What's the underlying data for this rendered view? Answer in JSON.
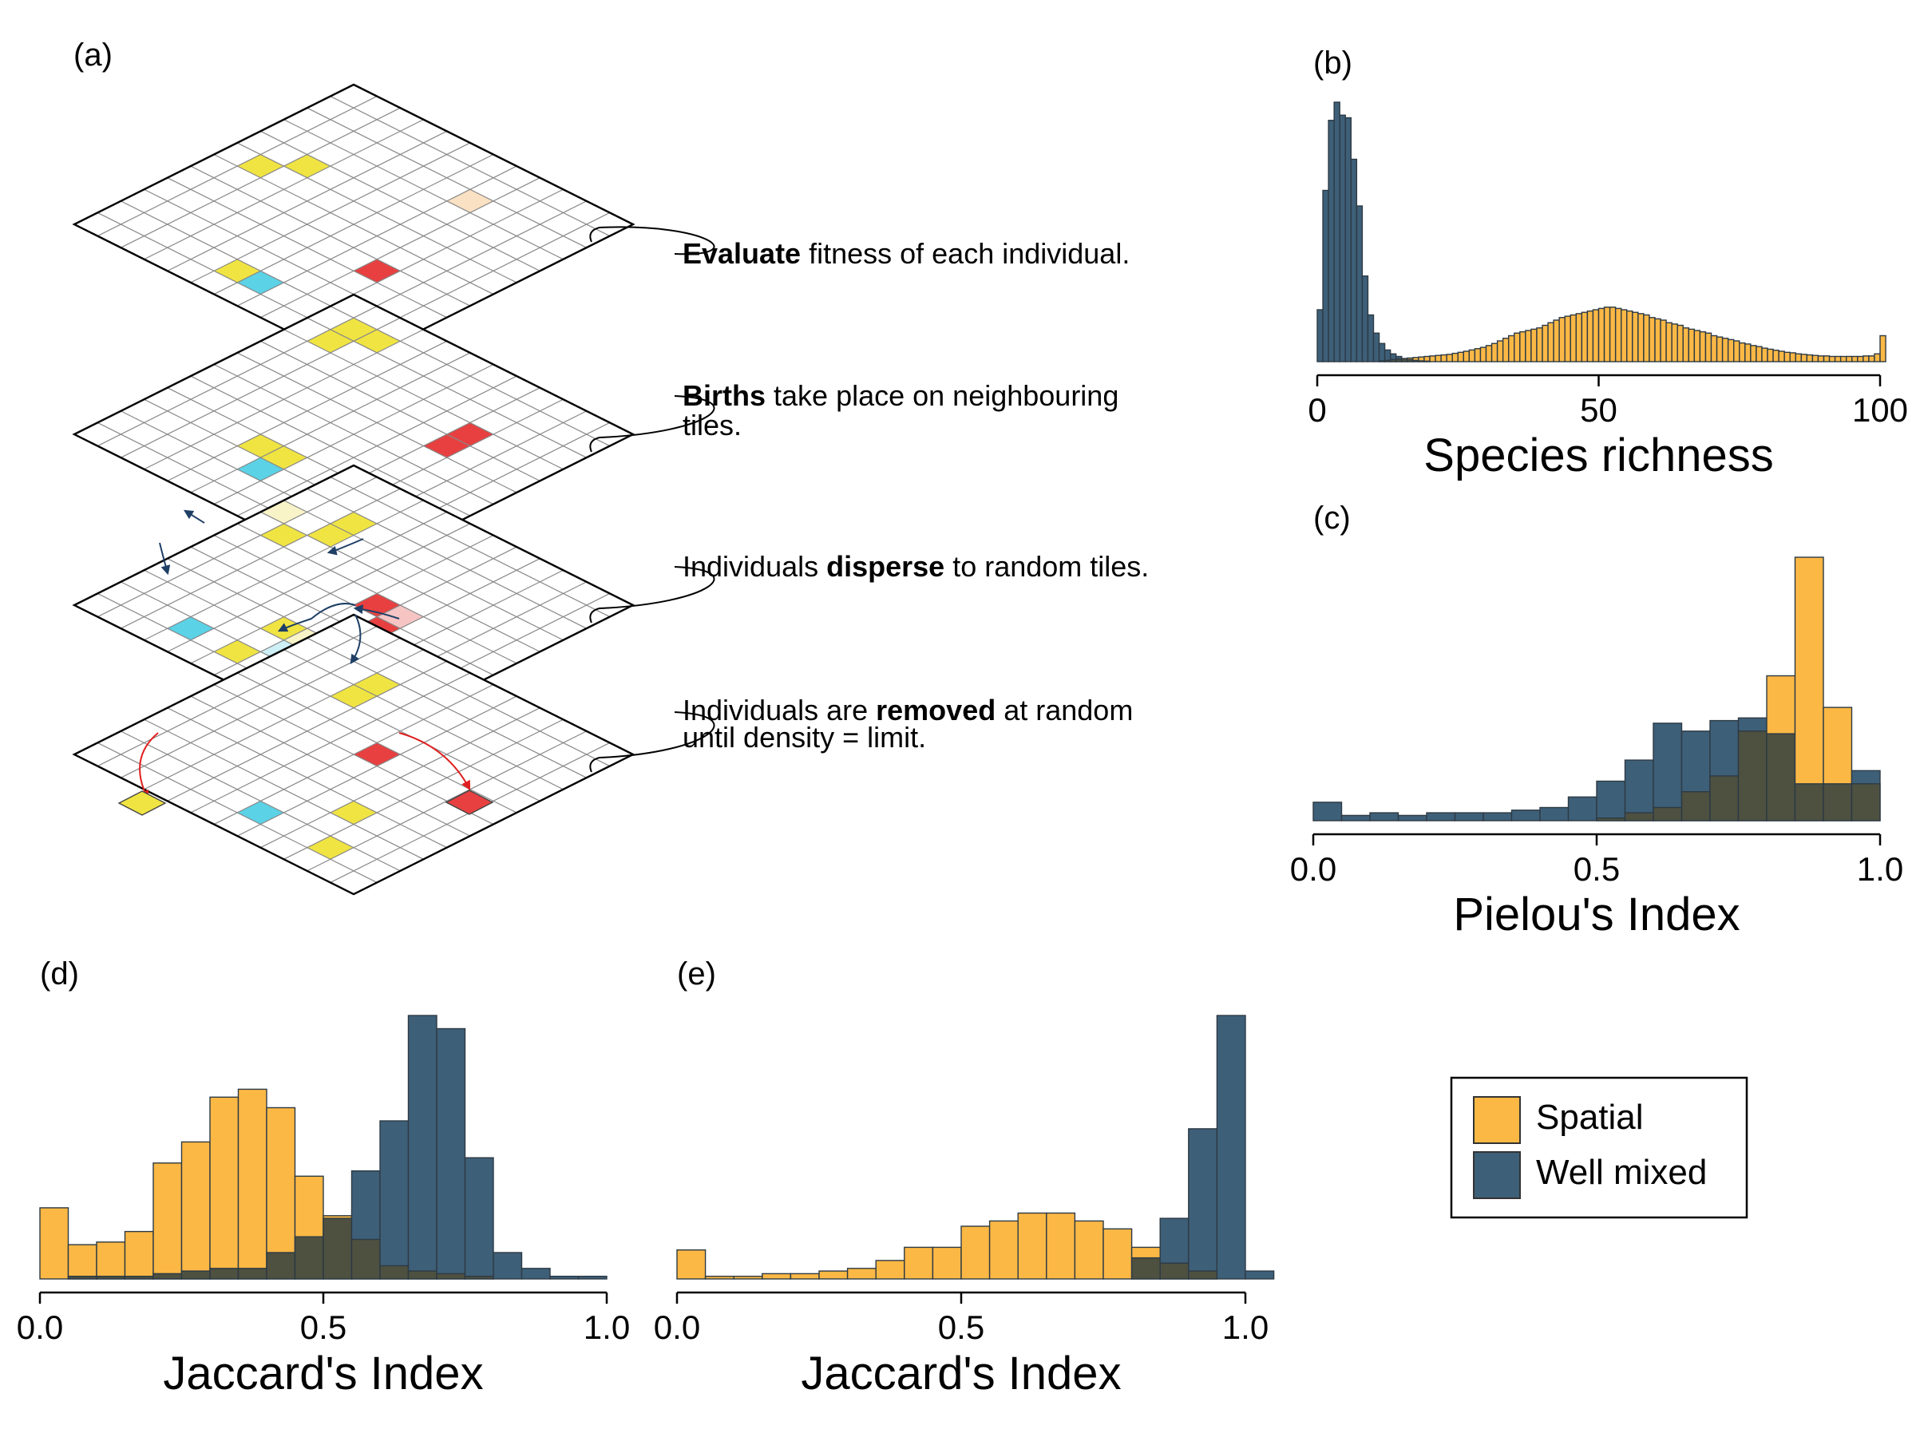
{
  "panels": {
    "a": {
      "label": "(a)",
      "steps": [
        {
          "pre": "",
          "bold": "Evaluate",
          "post": " fitness of each individual.",
          "line2": ""
        },
        {
          "pre": "",
          "bold": "Births",
          "post": " take place on neighbouring",
          "line2": "tiles."
        },
        {
          "pre": "Individuals ",
          "bold": "disperse",
          "post": " to random tiles.",
          "line2": ""
        },
        {
          "pre": "Individuals are ",
          "bold": "removed",
          "post": " at random",
          "line2": "until density = limit."
        }
      ],
      "tile_colors": {
        "yellow": "#f0e442",
        "red": "#e84040",
        "cyan": "#5bd2e6",
        "peach": "#fae1c3",
        "pale_yellow": "#f8f4c8",
        "pale_red": "#f7c4c4",
        "pale_cyan": "#cdf0f6"
      }
    }
  },
  "legend": {
    "entries": [
      {
        "label": "Spatial",
        "color": "#fbb845"
      },
      {
        "label": "Well mixed",
        "color": "#3e5f78"
      }
    ],
    "overlap_color": "#4e5140"
  },
  "chart_data": [
    {
      "id": "b",
      "panel_label": "(b)",
      "type": "bar",
      "subtype": "overlapping histogram",
      "xlabel": "Species richness",
      "xlim": [
        0,
        100
      ],
      "ylim": [
        0,
        1000
      ],
      "xticks": [
        {
          "v": 0,
          "label": "0"
        },
        {
          "v": 50,
          "label": "50"
        },
        {
          "v": 100,
          "label": "100"
        }
      ],
      "bin_start": 0,
      "bin_width": 1,
      "series": [
        {
          "name": "Well mixed",
          "color": "#3e5f78",
          "values": [
            200,
            660,
            930,
            1000,
            950,
            940,
            780,
            600,
            330,
            180,
            110,
            70,
            45,
            30,
            20,
            12,
            8,
            5,
            3,
            2
          ]
        },
        {
          "name": "Spatial",
          "color": "#fbb845",
          "values": [
            0,
            0,
            0,
            0,
            0,
            0,
            0,
            0,
            0,
            0,
            0,
            3,
            5,
            8,
            10,
            12,
            14,
            16,
            18,
            20,
            22,
            24,
            26,
            28,
            32,
            36,
            40,
            45,
            50,
            55,
            62,
            70,
            80,
            90,
            100,
            110,
            115,
            120,
            125,
            130,
            140,
            150,
            160,
            170,
            175,
            180,
            185,
            190,
            195,
            200,
            205,
            210,
            210,
            205,
            200,
            195,
            190,
            185,
            180,
            170,
            165,
            160,
            150,
            145,
            140,
            130,
            125,
            120,
            115,
            110,
            100,
            95,
            90,
            85,
            80,
            72,
            68,
            62,
            58,
            52,
            48,
            44,
            40,
            36,
            34,
            30,
            28,
            26,
            24,
            22,
            22,
            20,
            20,
            20,
            20,
            20,
            20,
            22,
            22,
            30,
            100
          ]
        }
      ]
    },
    {
      "id": "c",
      "panel_label": "(c)",
      "type": "bar",
      "subtype": "overlapping histogram",
      "xlabel": "Pielou's Index",
      "xlim": [
        0,
        1
      ],
      "ylim": [
        0,
        1
      ],
      "xticks": [
        {
          "v": 0,
          "label": "0.0"
        },
        {
          "v": 0.5,
          "label": "0.5"
        },
        {
          "v": 1,
          "label": "1.0"
        }
      ],
      "bin_start": 0,
      "bin_width": 0.05,
      "series": [
        {
          "name": "Spatial",
          "color": "#fbb845",
          "values": [
            0,
            0,
            0,
            0,
            0,
            0,
            0,
            0,
            0,
            0,
            0.01,
            0.03,
            0.05,
            0.11,
            0.17,
            0.34,
            0.55,
            1.0,
            0.43,
            0.14
          ]
        },
        {
          "name": "Well mixed",
          "color": "#3e5f78",
          "values": [
            0.07,
            0.02,
            0.03,
            0.02,
            0.03,
            0.03,
            0.03,
            0.04,
            0.05,
            0.09,
            0.15,
            0.23,
            0.37,
            0.34,
            0.38,
            0.39,
            0.33,
            0.14,
            0.14,
            0.19
          ]
        }
      ]
    },
    {
      "id": "d",
      "panel_label": "(d)",
      "type": "bar",
      "subtype": "overlapping histogram",
      "xlabel": "Jaccard's Index",
      "xlim": [
        0,
        1
      ],
      "ylim": [
        0,
        1
      ],
      "xticks": [
        {
          "v": 0,
          "label": "0.0"
        },
        {
          "v": 0.5,
          "label": "0.5"
        },
        {
          "v": 1,
          "label": "1.0"
        }
      ],
      "bin_start": 0,
      "bin_width": 0.05,
      "series": [
        {
          "name": "Spatial",
          "color": "#fbb845",
          "values": [
            0.27,
            0.13,
            0.14,
            0.18,
            0.44,
            0.52,
            0.69,
            0.72,
            0.65,
            0.39,
            0.24,
            0.15,
            0.05,
            0.03,
            0.02,
            0.01,
            0,
            0,
            0,
            0
          ]
        },
        {
          "name": "Well mixed",
          "color": "#3e5f78",
          "values": [
            0,
            0.01,
            0.01,
            0.01,
            0.02,
            0.03,
            0.04,
            0.04,
            0.1,
            0.16,
            0.23,
            0.41,
            0.6,
            1.0,
            0.95,
            0.46,
            0.1,
            0.04,
            0.01,
            0.01
          ]
        }
      ]
    },
    {
      "id": "e",
      "panel_label": "(e)",
      "type": "bar",
      "subtype": "overlapping histogram",
      "xlabel": "Jaccard's Index",
      "xlim": [
        0,
        1
      ],
      "ylim": [
        0,
        1
      ],
      "xticks": [
        {
          "v": 0,
          "label": "0.0"
        },
        {
          "v": 0.5,
          "label": "0.5"
        },
        {
          "v": 1,
          "label": "1.0"
        }
      ],
      "bin_start": 0,
      "bin_width": 0.05,
      "series": [
        {
          "name": "Spatial",
          "color": "#fbb845",
          "values": [
            0.11,
            0.01,
            0.01,
            0.02,
            0.02,
            0.03,
            0.04,
            0.07,
            0.12,
            0.12,
            0.2,
            0.22,
            0.25,
            0.25,
            0.22,
            0.19,
            0.12,
            0.06,
            0.03,
            0
          ]
        },
        {
          "name": "Well mixed",
          "color": "#3e5f78",
          "values": [
            0,
            0,
            0,
            0,
            0,
            0,
            0,
            0,
            0,
            0,
            0,
            0,
            0,
            0,
            0,
            0,
            0.08,
            0.23,
            0.57,
            1.0,
            0.03
          ]
        }
      ]
    }
  ]
}
